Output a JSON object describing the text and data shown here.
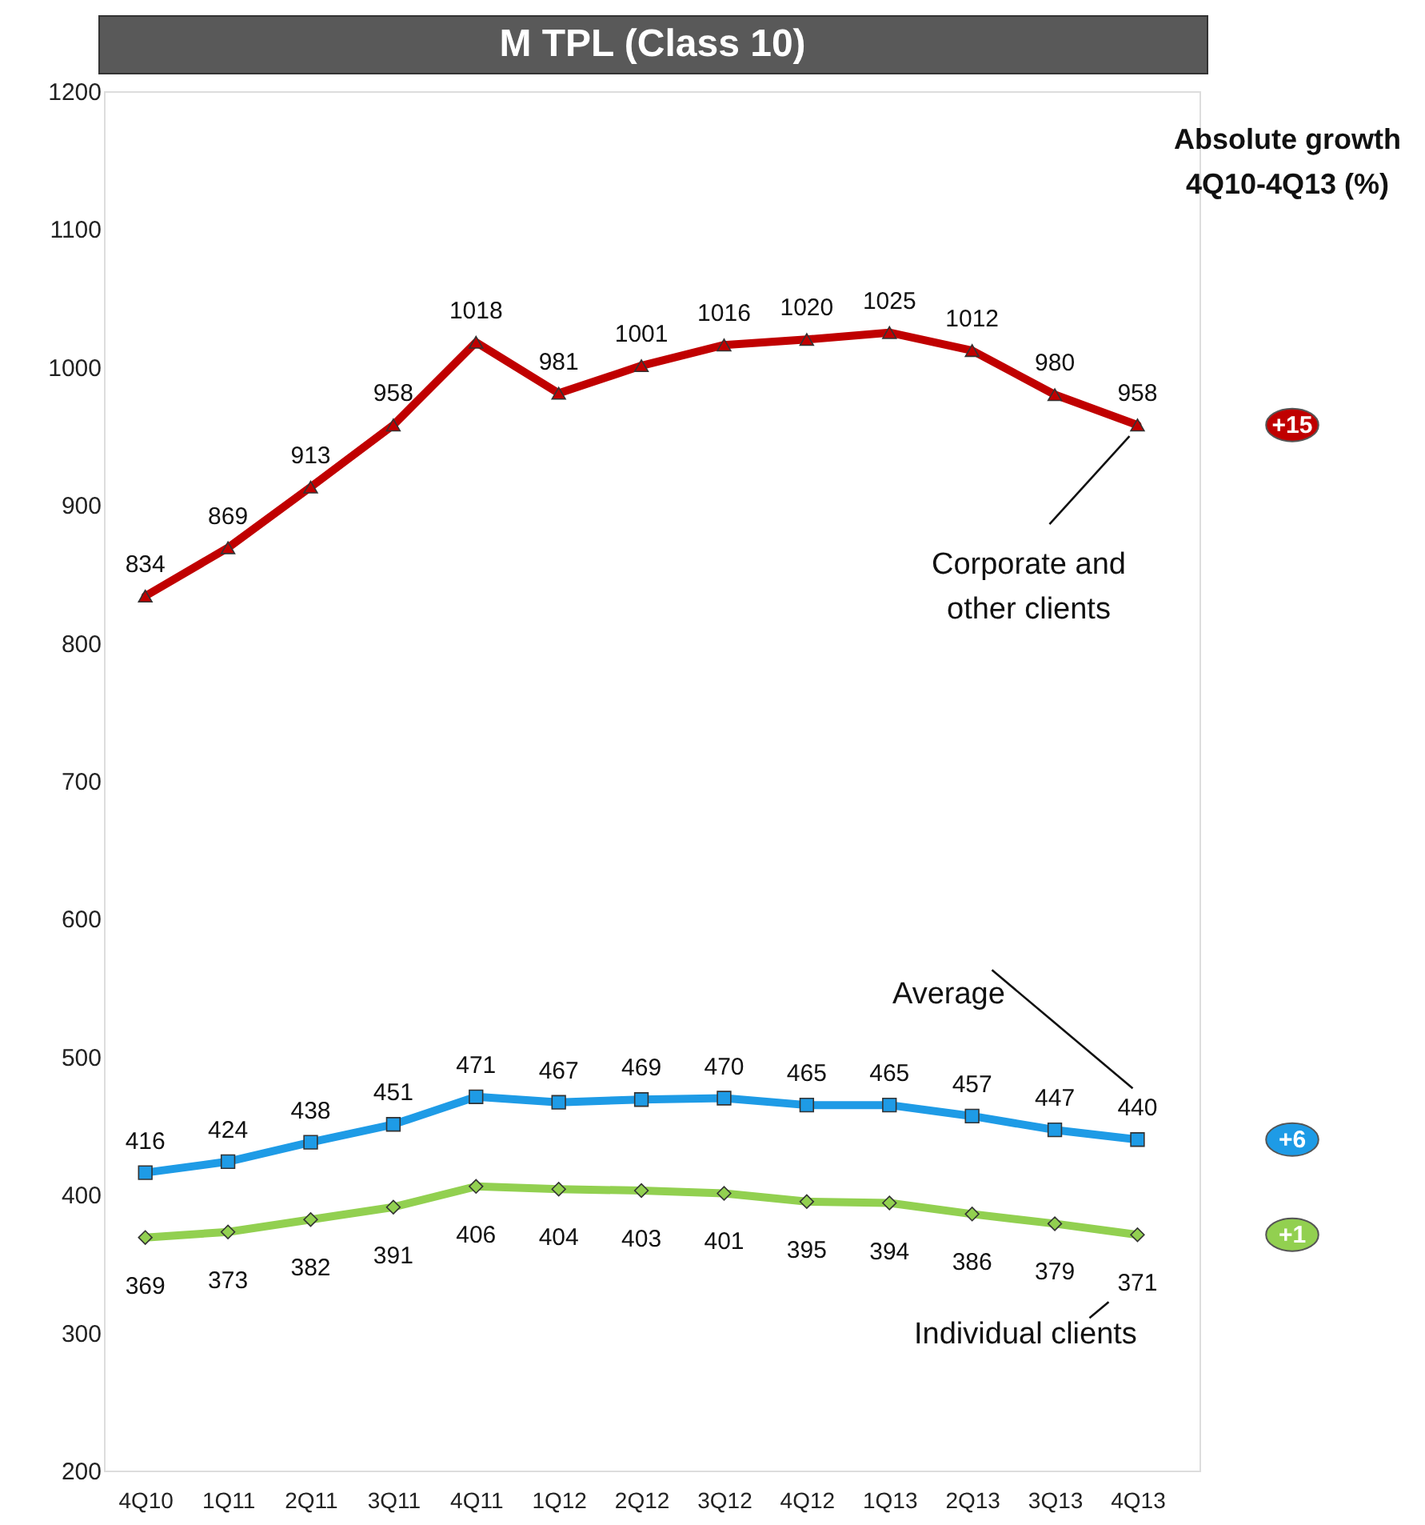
{
  "chart_data": {
    "type": "line",
    "title": "M TPL (Class 10)",
    "categories": [
      "4Q10",
      "1Q11",
      "2Q11",
      "3Q11",
      "4Q11",
      "1Q12",
      "2Q12",
      "3Q12",
      "4Q12",
      "1Q13",
      "2Q13",
      "3Q13",
      "4Q13"
    ],
    "series": [
      {
        "name": "Corporate and other clients",
        "color": "#c00000",
        "marker": "triangle",
        "values": [
          834,
          869,
          913,
          958,
          1018,
          981,
          1001,
          1016,
          1020,
          1025,
          1012,
          980,
          958
        ]
      },
      {
        "name": "Average",
        "color": "#1e9be6",
        "marker": "square",
        "values": [
          416,
          424,
          438,
          451,
          471,
          467,
          469,
          470,
          465,
          465,
          457,
          447,
          440
        ]
      },
      {
        "name": "Individual clients",
        "color": "#92d050",
        "marker": "diamond",
        "values": [
          369,
          373,
          382,
          391,
          406,
          404,
          403,
          401,
          395,
          394,
          386,
          379,
          371
        ]
      }
    ],
    "ylim": [
      200,
      1200
    ],
    "yticks": [
      200,
      300,
      400,
      500,
      600,
      700,
      800,
      900,
      1000,
      1100,
      1200
    ],
    "data_labels": true,
    "grid": false,
    "line_style": "solid",
    "annotations": [
      "Absolute growth\n4Q10-4Q13 (%)",
      "+15",
      "+6",
      "+1"
    ]
  }
}
